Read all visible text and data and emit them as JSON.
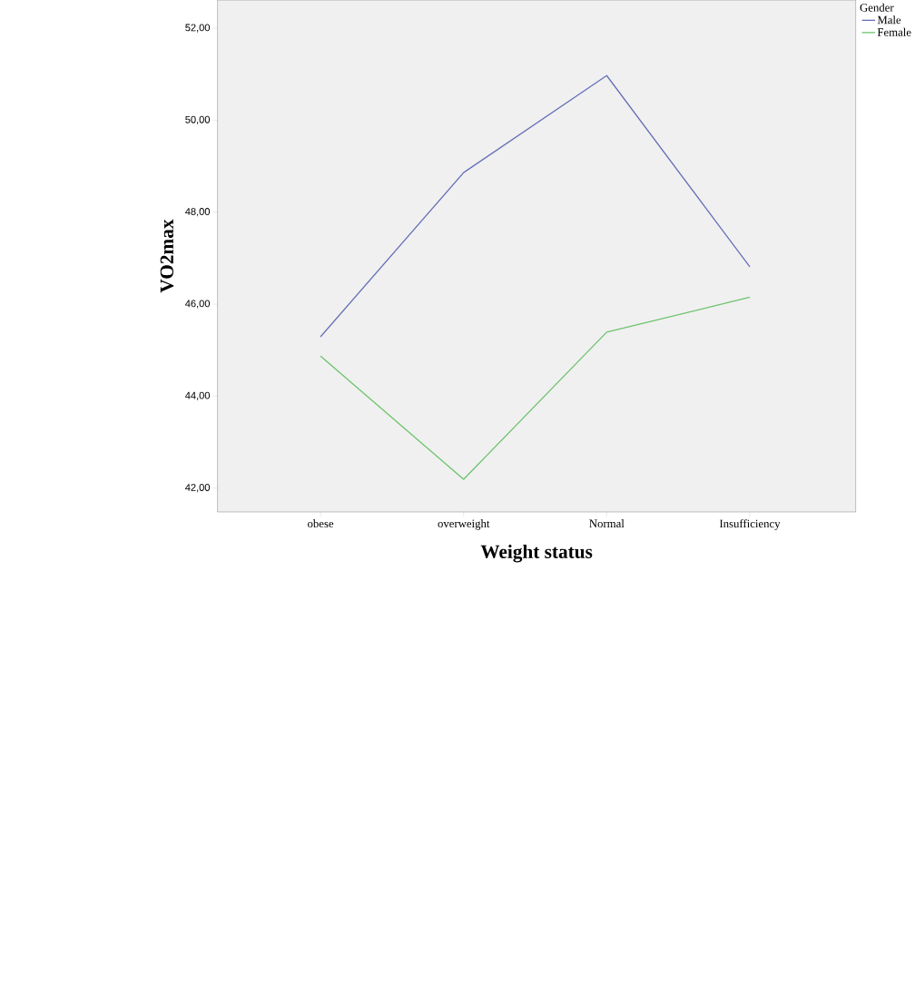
{
  "chart_data": {
    "type": "line",
    "xlabel": "Weight status",
    "ylabel": "VO2max",
    "legend_title": "Gender",
    "legend": "right",
    "categories": [
      "obese",
      "overweight",
      "Normal",
      "Insufficiency"
    ],
    "series": [
      {
        "name": "Male",
        "color": "#6670b8",
        "values": [
          45.29,
          48.86,
          50.97,
          46.81
        ]
      },
      {
        "name": "Female",
        "color": "#6cc26c",
        "values": [
          44.87,
          42.19,
          45.39,
          46.15
        ]
      }
    ],
    "ylim": [
      41.48,
      52.61
    ],
    "yticks": [
      {
        "value": 42,
        "label": "42,00"
      },
      {
        "value": 44,
        "label": "44,00"
      },
      {
        "value": 46,
        "label": "46,00"
      },
      {
        "value": 48,
        "label": "48,00"
      },
      {
        "value": 50,
        "label": "50,00"
      },
      {
        "value": 52,
        "label": "52,00"
      }
    ],
    "grid": false,
    "marker": "none",
    "line_style": "solid"
  }
}
